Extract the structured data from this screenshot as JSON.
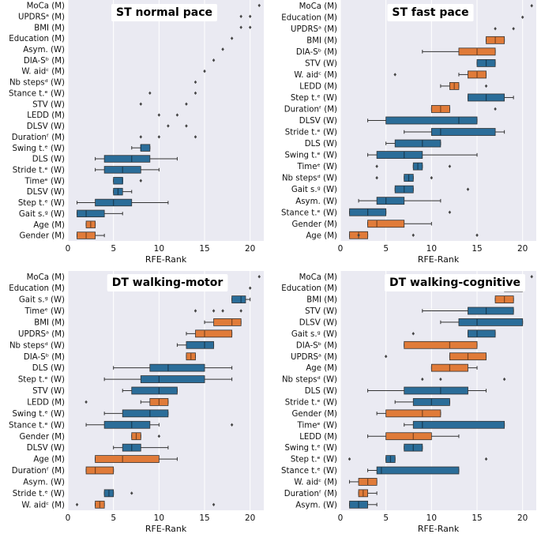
{
  "colors": {
    "W": "#2b6d99",
    "M": "#e07b39",
    "background": "#eaeaf2",
    "grid": "#ffffff"
  },
  "chart_data": [
    {
      "type": "box",
      "title": "ST normal pace",
      "xlabel": "RFE-Rank",
      "xlim": [
        0,
        21.5
      ],
      "xticks": [
        0,
        5,
        10,
        15,
        20
      ],
      "rows": [
        {
          "label": "MoCa (M)",
          "group": "M",
          "box": null,
          "outliers": [
            21
          ]
        },
        {
          "label": "UPDRSᵃ (M)",
          "group": "M",
          "box": null,
          "outliers": [
            19,
            20
          ]
        },
        {
          "label": "BMI (M)",
          "group": "M",
          "box": null,
          "outliers": [
            19,
            20
          ]
        },
        {
          "label": "Education (M)",
          "group": "M",
          "box": null,
          "outliers": [
            18
          ]
        },
        {
          "label": "Asym. (W)",
          "group": "W",
          "box": null,
          "outliers": [
            17
          ]
        },
        {
          "label": "DIA-Sᵇ (M)",
          "group": "M",
          "box": null,
          "outliers": [
            16
          ]
        },
        {
          "label": "W. aidᶜ (M)",
          "group": "M",
          "box": null,
          "outliers": [
            15
          ]
        },
        {
          "label": "Nb stepsᵈ (W)",
          "group": "W",
          "box": null,
          "outliers": [
            14
          ]
        },
        {
          "label": "Stance t.ᵉ (W)",
          "group": "W",
          "box": null,
          "outliers": [
            9,
            14
          ]
        },
        {
          "label": "STV (W)",
          "group": "W",
          "box": null,
          "outliers": [
            8,
            13
          ]
        },
        {
          "label": "LEDD (M)",
          "group": "M",
          "box": null,
          "outliers": [
            10,
            12
          ]
        },
        {
          "label": "DLSV (W)",
          "group": "W",
          "box": null,
          "outliers": [
            11,
            13
          ]
        },
        {
          "label": "Durationᶠ (M)",
          "group": "M",
          "box": null,
          "outliers": [
            8,
            10,
            14
          ]
        },
        {
          "label": "Swing t.ᵉ (W)",
          "group": "W",
          "box": [
            7,
            8,
            8,
            9,
            9
          ],
          "outliers": []
        },
        {
          "label": "DLS (W)",
          "group": "W",
          "box": [
            3,
            4,
            7,
            9,
            12
          ],
          "outliers": []
        },
        {
          "label": "Stride t.ᵉ (W)",
          "group": "W",
          "box": [
            3,
            4,
            6,
            8,
            10
          ],
          "outliers": []
        },
        {
          "label": "Timeᵉ (W)",
          "group": "W",
          "box": [
            5,
            5,
            6,
            6,
            6
          ],
          "outliers": [
            8
          ]
        },
        {
          "label": "DLSV (W)",
          "group": "W",
          "box": [
            5,
            5,
            5.5,
            6,
            7
          ],
          "outliers": []
        },
        {
          "label": "Step t.ᵉ (W)",
          "group": "W",
          "box": [
            1,
            3,
            5,
            7,
            11
          ],
          "outliers": []
        },
        {
          "label": "Gait s.ᵍ (W)",
          "group": "W",
          "box": [
            1,
            1,
            2,
            4,
            6
          ],
          "outliers": []
        },
        {
          "label": "Age (M)",
          "group": "M",
          "box": [
            2,
            2,
            2.5,
            3,
            3
          ],
          "outliers": []
        },
        {
          "label": "Gender (M)",
          "group": "M",
          "box": [
            1,
            1,
            2,
            3,
            4
          ],
          "outliers": []
        }
      ]
    },
    {
      "type": "box",
      "title": "ST fast pace",
      "xlabel": "RFE-Rank",
      "xlim": [
        0,
        21.5
      ],
      "xticks": [
        0,
        5,
        10,
        15,
        20
      ],
      "rows": [
        {
          "label": "MoCa (M)",
          "group": "M",
          "box": null,
          "outliers": [
            21
          ]
        },
        {
          "label": "Education (M)",
          "group": "M",
          "box": null,
          "outliers": [
            20
          ]
        },
        {
          "label": "UPDRSᵃ (M)",
          "group": "M",
          "box": null,
          "outliers": [
            17,
            19
          ]
        },
        {
          "label": "BMI (M)",
          "group": "M",
          "box": [
            16,
            16,
            17,
            18,
            18
          ],
          "outliers": []
        },
        {
          "label": "DIA-Sᵇ (M)",
          "group": "M",
          "box": [
            9,
            13,
            15,
            17,
            17
          ],
          "outliers": []
        },
        {
          "label": "STV (W)",
          "group": "W",
          "box": [
            15,
            15,
            16,
            17,
            17
          ],
          "outliers": []
        },
        {
          "label": "W. aidᶜ (M)",
          "group": "M",
          "box": [
            13,
            14,
            15,
            16,
            16
          ],
          "outliers": [
            6
          ]
        },
        {
          "label": "LEDD (M)",
          "group": "M",
          "box": [
            11,
            12,
            12.5,
            13,
            13
          ],
          "outliers": [
            16
          ]
        },
        {
          "label": "Step t.ᵉ (W)",
          "group": "W",
          "box": [
            14,
            14,
            16,
            18,
            19
          ],
          "outliers": []
        },
        {
          "label": "Durationᶠ (M)",
          "group": "M",
          "box": [
            10,
            10,
            11,
            12,
            12
          ],
          "outliers": [
            17
          ]
        },
        {
          "label": "DLSV (W)",
          "group": "W",
          "box": [
            3,
            5,
            13,
            15,
            15
          ],
          "outliers": []
        },
        {
          "label": "Stride t.ᵉ (W)",
          "group": "W",
          "box": [
            7,
            10,
            11,
            17,
            18
          ],
          "outliers": []
        },
        {
          "label": "DLS (W)",
          "group": "W",
          "box": [
            5,
            6,
            9,
            11,
            11
          ],
          "outliers": []
        },
        {
          "label": "Swing t.ᵉ (W)",
          "group": "W",
          "box": [
            3,
            4,
            7,
            9,
            15
          ],
          "outliers": []
        },
        {
          "label": "Timeᵉ (W)",
          "group": "W",
          "box": [
            8,
            8,
            8.5,
            9,
            9
          ],
          "outliers": [
            4,
            12
          ]
        },
        {
          "label": "Nb stepsᵈ (W)",
          "group": "W",
          "box": [
            7,
            7,
            7.5,
            8,
            8
          ],
          "outliers": [
            4,
            10
          ]
        },
        {
          "label": "Gait s.ᵍ (W)",
          "group": "W",
          "box": [
            6,
            6,
            7,
            8,
            8
          ],
          "outliers": [
            14
          ]
        },
        {
          "label": "Asym. (W)",
          "group": "W",
          "box": [
            2,
            4,
            5,
            7,
            11
          ],
          "outliers": []
        },
        {
          "label": "Stance t.ᵉ (W)",
          "group": "W",
          "box": [
            1,
            1,
            3,
            5,
            5
          ],
          "outliers": [
            12
          ]
        },
        {
          "label": "Gender (M)",
          "group": "M",
          "box": [
            3,
            3,
            4,
            7,
            10
          ],
          "outliers": []
        },
        {
          "label": "Age (M)",
          "group": "M",
          "box": [
            1,
            1,
            2,
            3,
            3
          ],
          "outliers": [
            2,
            8,
            15
          ]
        }
      ]
    },
    {
      "type": "box",
      "title": "DT walking-motor",
      "xlabel": "RFE-Rank",
      "xlim": [
        0,
        21.5
      ],
      "xticks": [
        0,
        5,
        10,
        15,
        20
      ],
      "rows": [
        {
          "label": "MoCa (M)",
          "group": "M",
          "box": null,
          "outliers": [
            21
          ]
        },
        {
          "label": "Education (M)",
          "group": "M",
          "box": null,
          "outliers": [
            20
          ]
        },
        {
          "label": "Gait s.ᵍ (W)",
          "group": "W",
          "box": [
            18,
            18,
            19,
            19.5,
            20
          ],
          "outliers": []
        },
        {
          "label": "Timeᵉ (W)",
          "group": "W",
          "box": null,
          "outliers": [
            14,
            16,
            17,
            19
          ]
        },
        {
          "label": "BMI (M)",
          "group": "M",
          "box": [
            15,
            16,
            18,
            19,
            19
          ],
          "outliers": []
        },
        {
          "label": "UPDRSᵃ (M)",
          "group": "M",
          "box": [
            13,
            14,
            15,
            18,
            18
          ],
          "outliers": []
        },
        {
          "label": "Nb stepsᵈ (W)",
          "group": "W",
          "box": [
            12,
            13,
            15,
            16,
            16
          ],
          "outliers": []
        },
        {
          "label": "DIA-Sᵇ (M)",
          "group": "M",
          "box": [
            13,
            13,
            13.5,
            14,
            14
          ],
          "outliers": []
        },
        {
          "label": "DLS (W)",
          "group": "W",
          "box": [
            5,
            9,
            11,
            15,
            18
          ],
          "outliers": []
        },
        {
          "label": "Step t.ᵉ (W)",
          "group": "W",
          "box": [
            4,
            8,
            10,
            15,
            18
          ],
          "outliers": []
        },
        {
          "label": "STV (W)",
          "group": "W",
          "box": [
            6,
            7,
            10,
            12,
            12
          ],
          "outliers": []
        },
        {
          "label": "LEDD (M)",
          "group": "M",
          "box": [
            8,
            9,
            10,
            11,
            11
          ],
          "outliers": [
            2
          ]
        },
        {
          "label": "Swing t.ᵉ (W)",
          "group": "W",
          "box": [
            4,
            6,
            9,
            11,
            11
          ],
          "outliers": []
        },
        {
          "label": "Stance t.ᵉ (W)",
          "group": "W",
          "box": [
            2,
            4,
            7,
            9,
            10
          ],
          "outliers": [
            18
          ]
        },
        {
          "label": "Gender (M)",
          "group": "M",
          "box": [
            7,
            7,
            7.5,
            8,
            8
          ],
          "outliers": [
            10
          ]
        },
        {
          "label": "DLSV (W)",
          "group": "W",
          "box": [
            5,
            6,
            7,
            8,
            11
          ],
          "outliers": []
        },
        {
          "label": "Age (M)",
          "group": "M",
          "box": [
            3,
            3,
            6,
            10,
            12
          ],
          "outliers": []
        },
        {
          "label": "Durationᶠ (M)",
          "group": "M",
          "box": [
            2,
            2,
            3,
            5,
            5
          ],
          "outliers": []
        },
        {
          "label": "Asym. (W)",
          "group": "W",
          "box": null,
          "outliers": []
        },
        {
          "label": "Stride t.ᵉ (W)",
          "group": "W",
          "box": [
            4,
            4,
            4.5,
            5,
            5
          ],
          "outliers": [
            7
          ]
        },
        {
          "label": "W. aidᶜ (M)",
          "group": "M",
          "box": [
            3,
            3,
            3.5,
            4,
            4
          ],
          "outliers": [
            1,
            16
          ]
        }
      ]
    },
    {
      "type": "box",
      "title": "DT walking-cognitive",
      "xlabel": "RFE-Rank",
      "xlim": [
        0,
        21.5
      ],
      "xticks": [
        0,
        5,
        10,
        15,
        20
      ],
      "rows": [
        {
          "label": "MoCa (M)",
          "group": "M",
          "box": null,
          "outliers": [
            21
          ]
        },
        {
          "label": "Education (M)",
          "group": "M",
          "box": [
            18,
            18,
            19,
            20,
            20
          ],
          "outliers": []
        },
        {
          "label": "BMI (M)",
          "group": "M",
          "box": [
            17,
            17,
            18,
            19,
            19
          ],
          "outliers": []
        },
        {
          "label": "STV (W)",
          "group": "W",
          "box": [
            9,
            14,
            16,
            19,
            19
          ],
          "outliers": []
        },
        {
          "label": "DLSV (W)",
          "group": "W",
          "box": [
            11,
            13,
            15,
            20,
            20
          ],
          "outliers": []
        },
        {
          "label": "Gait s.ᵍ (W)",
          "group": "W",
          "box": [
            14,
            14,
            15,
            17,
            17
          ],
          "outliers": [
            8
          ]
        },
        {
          "label": "DIA-Sᵇ (M)",
          "group": "M",
          "box": [
            7,
            7,
            12,
            15,
            15
          ],
          "outliers": []
        },
        {
          "label": "UPDRSᵃ (M)",
          "group": "M",
          "box": [
            12,
            12,
            14,
            16,
            16
          ],
          "outliers": [
            5
          ]
        },
        {
          "label": "Age (M)",
          "group": "M",
          "box": [
            10,
            10,
            12,
            14,
            15
          ],
          "outliers": []
        },
        {
          "label": "Nb stepsᵈ (W)",
          "group": "W",
          "box": null,
          "outliers": [
            9,
            11,
            18
          ]
        },
        {
          "label": "DLS (W)",
          "group": "W",
          "box": [
            3,
            7,
            11,
            14,
            16
          ],
          "outliers": []
        },
        {
          "label": "Stride t.ᵉ (W)",
          "group": "W",
          "box": [
            6,
            8,
            10,
            12,
            12
          ],
          "outliers": []
        },
        {
          "label": "Gender (M)",
          "group": "M",
          "box": [
            4,
            5,
            9,
            11,
            11
          ],
          "outliers": []
        },
        {
          "label": "Timeᵉ (W)",
          "group": "W",
          "box": [
            7,
            8,
            9,
            18,
            18
          ],
          "outliers": []
        },
        {
          "label": "LEDD (M)",
          "group": "M",
          "box": [
            3,
            5,
            8,
            10,
            13
          ],
          "outliers": []
        },
        {
          "label": "Swing t.ᵉ (W)",
          "group": "W",
          "box": [
            7,
            7,
            8,
            9,
            9
          ],
          "outliers": []
        },
        {
          "label": "Step t.ᵉ (W)",
          "group": "W",
          "box": [
            5,
            5,
            5.5,
            6,
            6
          ],
          "outliers": [
            1,
            16
          ]
        },
        {
          "label": "Stance t.ᵉ (W)",
          "group": "W",
          "box": [
            3,
            4,
            4.5,
            13,
            13
          ],
          "outliers": []
        },
        {
          "label": "W. aidᶜ (M)",
          "group": "M",
          "box": [
            1,
            2,
            3,
            4,
            4
          ],
          "outliers": []
        },
        {
          "label": "Durationᶠ (M)",
          "group": "M",
          "box": [
            2,
            2,
            2.5,
            3,
            4
          ],
          "outliers": []
        },
        {
          "label": "Asym. (W)",
          "group": "W",
          "box": [
            1,
            1,
            2,
            3,
            4
          ],
          "outliers": []
        }
      ]
    }
  ]
}
